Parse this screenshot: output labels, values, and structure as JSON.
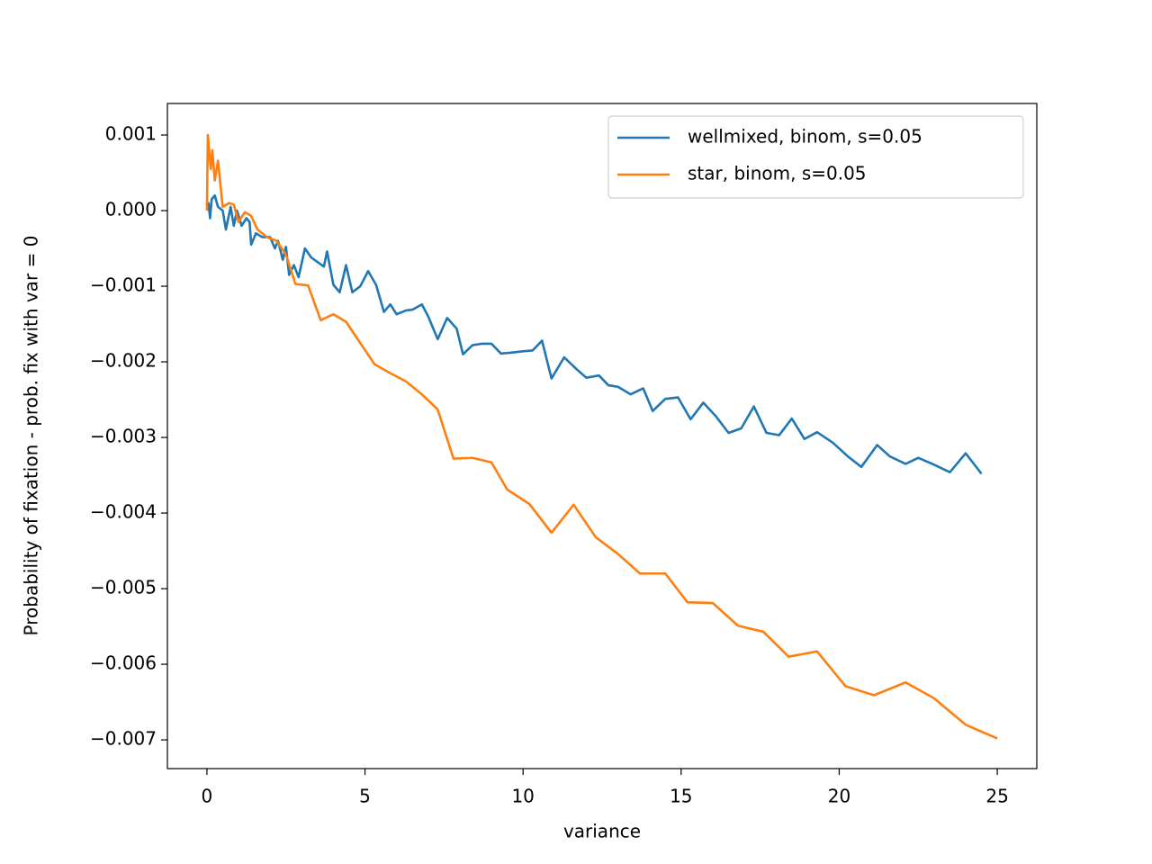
{
  "chart_data": {
    "type": "line",
    "xlabel": "variance",
    "ylabel": "Probability of fixation - prob. fix with var = 0",
    "xlim": [
      -1.25,
      26.25
    ],
    "xticks": [
      0,
      5,
      10,
      15,
      20,
      25
    ],
    "ylim": [
      -0.00738,
      0.001417
    ],
    "yticks": [
      {
        "value": 0.001,
        "label": "0.001"
      },
      {
        "value": 0,
        "label": "0.000"
      },
      {
        "value": -0.001,
        "label": "−0.001"
      },
      {
        "value": -0.002,
        "label": "−0.002"
      },
      {
        "value": -0.003,
        "label": "−0.003"
      },
      {
        "value": -0.004,
        "label": "−0.004"
      },
      {
        "value": -0.005,
        "label": "−0.005"
      },
      {
        "value": -0.006,
        "label": "−0.006"
      },
      {
        "value": -0.007,
        "label": "−0.007"
      }
    ],
    "legend": "upper right",
    "series": [
      {
        "name": "wellmixed, binom, s=0.05",
        "color": "#1f77b4",
        "x": [
          0,
          0.05,
          0.1,
          0.15,
          0.25,
          0.35,
          0.5,
          0.6,
          0.75,
          0.85,
          0.95,
          1.1,
          1.25,
          1.35,
          1.4,
          1.55,
          1.75,
          2.0,
          2.15,
          2.25,
          2.4,
          2.5,
          2.6,
          2.75,
          2.9,
          3.1,
          3.3,
          3.5,
          3.7,
          3.8,
          4.0,
          4.2,
          4.4,
          4.6,
          4.85,
          5.1,
          5.35,
          5.6,
          5.8,
          6.0,
          6.3,
          6.5,
          6.8,
          7.0,
          7.3,
          7.6,
          7.9,
          8.1,
          8.4,
          8.7,
          9.0,
          9.3,
          9.6,
          10.0,
          10.3,
          10.6,
          10.9,
          11.3,
          11.7,
          12.0,
          12.4,
          12.7,
          13.0,
          13.4,
          13.8,
          14.1,
          14.5,
          14.9,
          15.3,
          15.7,
          16.1,
          16.5,
          16.9,
          17.3,
          17.7,
          18.1,
          18.5,
          18.9,
          19.3,
          19.8,
          20.3,
          20.7,
          21.2,
          21.6,
          22.1,
          22.5,
          23.0,
          23.5,
          24.0,
          24.5
        ],
        "values": [
          0,
          0.0001,
          -0.0001,
          0.00015,
          0.0002,
          5e-05,
          0,
          -0.00025,
          5e-05,
          -0.0002,
          0,
          -0.0002,
          -0.0001,
          -0.00015,
          -0.00045,
          -0.0003,
          -0.00035,
          -0.00035,
          -0.0005,
          -0.0004,
          -0.00065,
          -0.00048,
          -0.00085,
          -0.00072,
          -0.00088,
          -0.0005,
          -0.00062,
          -0.00068,
          -0.00074,
          -0.00054,
          -0.00098,
          -0.00108,
          -0.00072,
          -0.00108,
          -0.001,
          -0.0008,
          -0.00098,
          -0.00134,
          -0.00124,
          -0.00137,
          -0.00132,
          -0.00131,
          -0.00124,
          -0.0014,
          -0.0017,
          -0.00142,
          -0.00156,
          -0.0019,
          -0.00178,
          -0.00176,
          -0.00176,
          -0.00189,
          -0.00188,
          -0.00186,
          -0.00185,
          -0.00172,
          -0.00222,
          -0.00194,
          -0.0021,
          -0.00221,
          -0.00218,
          -0.00231,
          -0.00233,
          -0.00243,
          -0.00235,
          -0.00265,
          -0.00249,
          -0.00247,
          -0.00276,
          -0.00254,
          -0.00272,
          -0.00294,
          -0.00288,
          -0.00259,
          -0.00294,
          -0.00297,
          -0.00275,
          -0.00302,
          -0.00293,
          -0.00307,
          -0.00326,
          -0.00339,
          -0.0031,
          -0.00325,
          -0.00335,
          -0.00327,
          -0.00336,
          -0.00346,
          -0.00321,
          -0.00348
        ]
      },
      {
        "name": "star, binom, s=0.05",
        "color": "#ff7f0e",
        "x": [
          0,
          0.03,
          0.12,
          0.17,
          0.25,
          0.35,
          0.5,
          0.7,
          0.85,
          1.0,
          1.2,
          1.4,
          1.6,
          1.9,
          2.2,
          2.5,
          2.8,
          3.2,
          3.6,
          4.0,
          4.4,
          4.8,
          5.3,
          5.8,
          6.3,
          6.8,
          7.3,
          7.8,
          8.4,
          9.0,
          9.5,
          10.2,
          10.9,
          11.6,
          12.3,
          13.0,
          13.7,
          14.5,
          15.2,
          16.0,
          16.8,
          17.6,
          18.4,
          19.3,
          20.2,
          21.1,
          22.1,
          23.0,
          24.0,
          25.0
        ],
        "values": [
          0,
          0.001,
          0.00055,
          0.0008,
          0.0004,
          0.00066,
          5e-05,
          0.0001,
          8e-05,
          -0.00015,
          -2e-05,
          -7e-05,
          -0.00025,
          -0.00035,
          -0.0004,
          -0.00058,
          -0.00097,
          -0.00099,
          -0.00145,
          -0.00137,
          -0.00147,
          -0.00172,
          -0.00203,
          -0.00215,
          -0.00226,
          -0.00243,
          -0.00263,
          -0.00328,
          -0.00327,
          -0.00333,
          -0.00369,
          -0.00388,
          -0.00426,
          -0.00389,
          -0.00432,
          -0.00454,
          -0.0048,
          -0.0048,
          -0.00518,
          -0.00519,
          -0.00549,
          -0.00557,
          -0.0059,
          -0.00583,
          -0.00629,
          -0.00641,
          -0.00624,
          -0.00645,
          -0.0068,
          -0.00698
        ]
      }
    ]
  }
}
